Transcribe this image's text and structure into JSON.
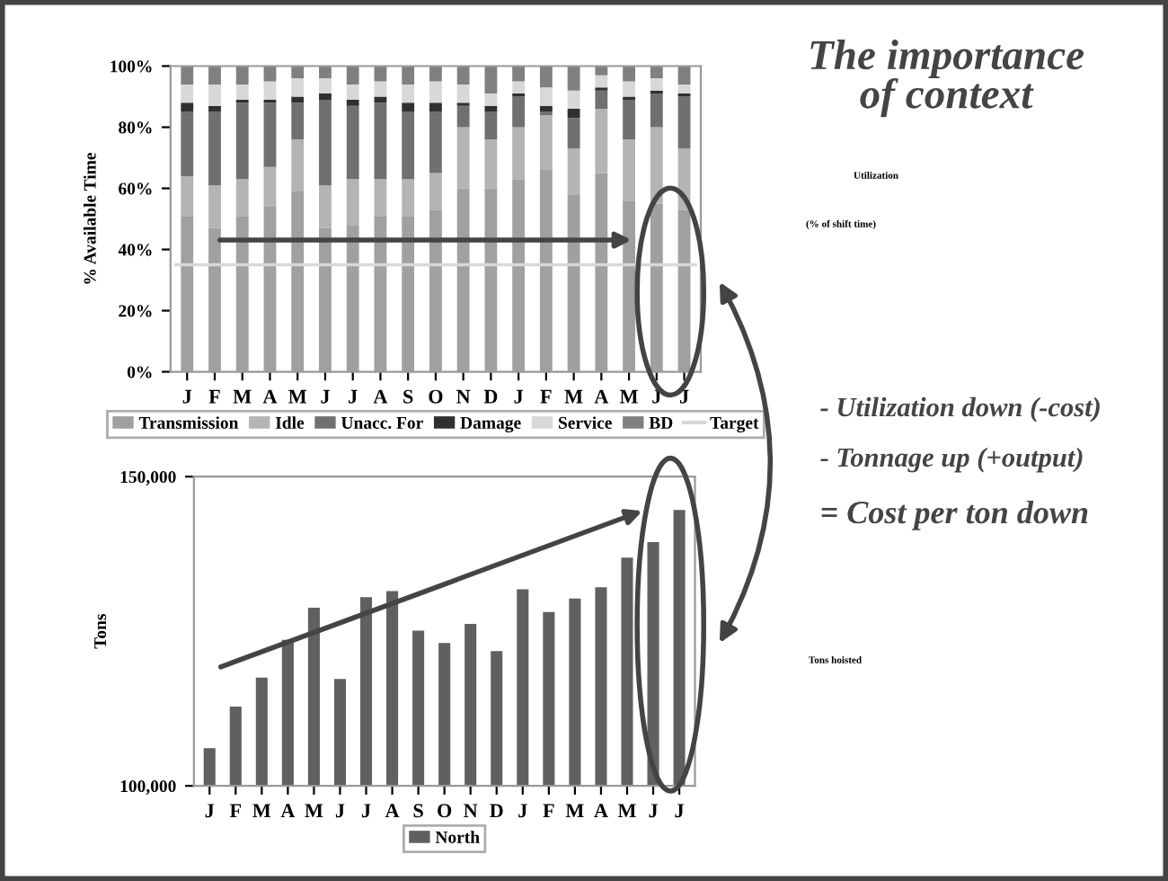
{
  "chart_data": [
    {
      "type": "bar",
      "ylabel": "% Available Time",
      "stacked": true,
      "categories": [
        "J",
        "F",
        "M",
        "A",
        "M",
        "J",
        "J",
        "A",
        "S",
        "O",
        "N",
        "D",
        "J",
        "F",
        "M",
        "A",
        "M",
        "J",
        "J"
      ],
      "series": [
        {
          "name": "Transmission",
          "color": "#a0a0a0",
          "values": [
            51,
            47,
            51,
            54,
            59,
            47,
            48,
            51,
            51,
            53,
            60,
            60,
            63,
            66,
            58,
            65,
            56,
            55,
            53
          ]
        },
        {
          "name": "Idle",
          "color": "#b4b4b4",
          "values": [
            13,
            14,
            12,
            13,
            17,
            14,
            15,
            12,
            12,
            12,
            20,
            16,
            17,
            18,
            15,
            21,
            20,
            25,
            20
          ]
        },
        {
          "name": "Unacc. For",
          "color": "#707070",
          "values": [
            21,
            24,
            25,
            21,
            12,
            28,
            24,
            25,
            22,
            20,
            7,
            9,
            10,
            1,
            10,
            6,
            13,
            11,
            17
          ]
        },
        {
          "name": "Damage",
          "color": "#303030",
          "values": [
            3,
            2,
            1,
            1,
            2,
            2,
            2,
            2,
            3,
            3,
            1,
            2,
            1,
            2,
            3,
            1,
            1,
            1,
            1
          ]
        },
        {
          "name": "Service",
          "color": "#d8d8d8",
          "values": [
            6,
            7,
            5,
            6,
            6,
            5,
            5,
            5,
            6,
            7,
            6,
            4,
            4,
            6,
            6,
            4,
            5,
            4,
            3
          ]
        },
        {
          "name": "BD",
          "color": "#808080",
          "values": [
            6,
            6,
            6,
            5,
            4,
            4,
            6,
            5,
            6,
            5,
            6,
            9,
            5,
            7,
            8,
            3,
            5,
            4,
            6
          ]
        }
      ],
      "ref_lines": [
        {
          "axis": "y",
          "value": 35,
          "label": "Target",
          "color": "#d8d8d8"
        }
      ],
      "ylim": [
        0,
        100
      ],
      "yticks": [
        {
          "value": 0,
          "label": "0%"
        },
        {
          "value": 20,
          "label": "20%"
        },
        {
          "value": 40,
          "label": "40%"
        },
        {
          "value": 60,
          "label": "60%"
        },
        {
          "value": 80,
          "label": "80%"
        },
        {
          "value": 100,
          "label": "100%"
        }
      ],
      "grid": false,
      "legend": "bottom",
      "annotations": [
        "Utilization",
        "(% of shift time)"
      ]
    },
    {
      "type": "bar",
      "ylabel": "Tons",
      "categories": [
        "J",
        "F",
        "M",
        "A",
        "M",
        "J",
        "J",
        "A",
        "S",
        "O",
        "N",
        "D",
        "J",
        "F",
        "M",
        "A",
        "M",
        "J",
        "J"
      ],
      "series": [
        {
          "name": "North",
          "color": "#606060",
          "values": [
            106100,
            112800,
            117500,
            123600,
            128800,
            117300,
            130500,
            131500,
            125100,
            123100,
            126200,
            121800,
            131800,
            128100,
            130300,
            132100,
            136900,
            139400,
            144600
          ]
        }
      ],
      "ylim": [
        100000,
        150000
      ],
      "yticks": [
        {
          "value": 100000,
          "label": "100,000"
        },
        {
          "value": 150000,
          "label": "150,000"
        }
      ],
      "grid": false,
      "legend": "bottom",
      "annotations": [
        "Tons hoisted"
      ]
    },
    {
      "type": "other",
      "title": "The importance of context",
      "annotations": [
        "- Utilization down (-cost)",
        "- Tonnage up (+output)",
        "= Cost per ton down"
      ]
    }
  ]
}
